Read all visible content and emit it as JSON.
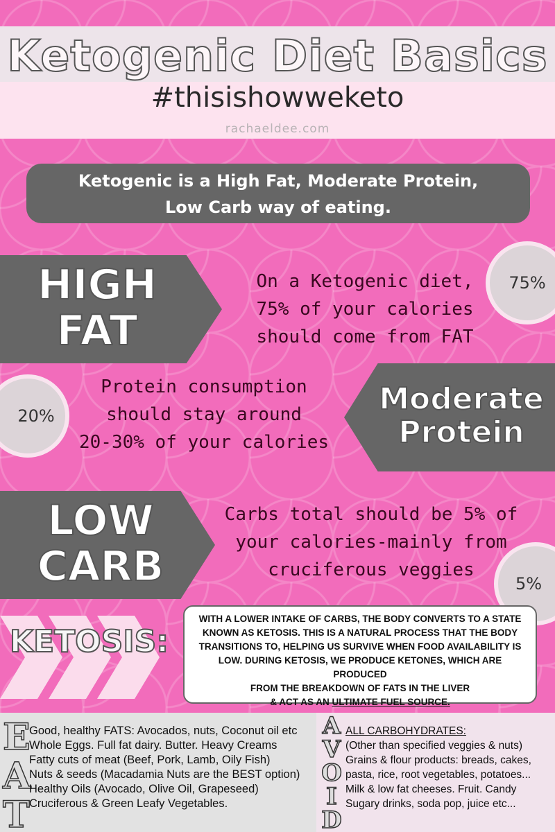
{
  "header": {
    "title": "Ketogenic Diet Basics",
    "hashtag": "#thisishowweketo",
    "site": "rachaeldee.com"
  },
  "intro": {
    "line1": "Ketogenic is a High Fat, Moderate Protein,",
    "line2": "Low Carb way of eating."
  },
  "sections": {
    "fat": {
      "label_line1": "HIGH",
      "label_line2": "FAT",
      "text_line1": "On a Ketogenic diet,",
      "text_line2": "75% of your calories",
      "text_line3": "should come from FAT",
      "percent": "75%"
    },
    "protein": {
      "label_line1": "Moderate",
      "label_line2": "Protein",
      "text_line1": "Protein consumption",
      "text_line2": "should stay around",
      "text_line3": "20-30% of your calories",
      "percent": "20%"
    },
    "carb": {
      "label_line1": "LOW",
      "label_line2": "CARB",
      "text_line1": "Carbs total should be 5% of",
      "text_line2": "your calories-mainly from",
      "text_line3": "cruciferous veggies",
      "percent": "5%"
    }
  },
  "ketosis": {
    "title": "KETOSIS:",
    "line1": "With a lower intake of carbs, the body converts to a state",
    "line2": "known as ketosis. This is a natural process that the body",
    "line3": "transitions to, helping us survive when food availability is",
    "line4": "low. During ketosis, we produce ketones, which are produced",
    "line5": "from the breakdown of fats in the liver",
    "line6_pre": "& act as an ",
    "line6_link": "ultimate fuel source."
  },
  "eat": {
    "letters": [
      "E",
      "A",
      "T"
    ],
    "items": [
      "Good, healthy FATS: Avocados, nuts, Coconut oil etc",
      "Whole Eggs.  Full fat dairy.  Butter.  Heavy Creams",
      "Fatty cuts of meat (Beef, Pork, Lamb, Oily Fish)",
      "Nuts & seeds (Macadamia Nuts are the BEST option)",
      "Healthy Oils (Avocado, Olive Oil, Grapeseed)",
      "Cruciferous & Green Leafy Vegetables."
    ]
  },
  "avoid": {
    "letters": [
      "A",
      "V",
      "O",
      "I",
      "D"
    ],
    "items": [
      "ALL CARBOHYDRATES:",
      "(Other than specified veggies & nuts)",
      "Grains & flour products: breads, cakes,",
      "pasta, rice, root vegetables, potatoes...",
      "Milk & low fat cheeses.  Fruit.  Candy",
      "Sugary drinks, soda pop, juice etc..."
    ]
  },
  "colors": {
    "background_pink": "#f26cbb",
    "banner_gray": "#666666",
    "header_light": "#fde3ef"
  }
}
